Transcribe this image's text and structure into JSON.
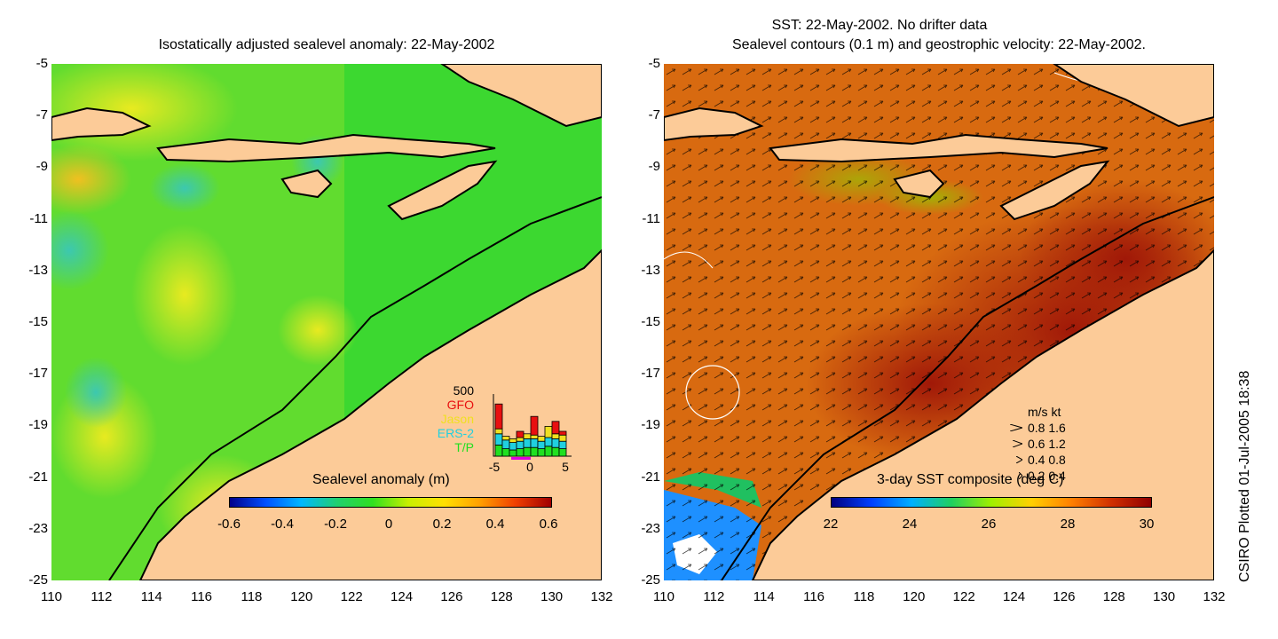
{
  "left_panel": {
    "title": "Isostatically adjusted sealevel anomaly: 22-May-2002",
    "colorbar_label": "Sealevel anomaly (m)",
    "colorbar_ticks": [
      "-0.6",
      "-0.4",
      "-0.2",
      "0",
      "0.2",
      "0.4",
      "0.6"
    ],
    "inset": {
      "max_label": "500",
      "missions": [
        {
          "name": "GFO",
          "color": "#e81010"
        },
        {
          "name": "Jason",
          "color": "#f0e020"
        },
        {
          "name": "ERS-2",
          "color": "#20d0e0"
        },
        {
          "name": "T/P",
          "color": "#20e020"
        }
      ],
      "x_ticks": [
        "-5",
        "0",
        "5"
      ],
      "bars": [
        {
          "tp": 0.18,
          "ers": 0.18,
          "jason": 0.08,
          "gfo": 0.4
        },
        {
          "tp": 0.12,
          "ers": 0.14,
          "jason": 0.06,
          "gfo": 0.0
        },
        {
          "tp": 0.1,
          "ers": 0.12,
          "jason": 0.06,
          "gfo": 0.0
        },
        {
          "tp": 0.12,
          "ers": 0.12,
          "jason": 0.06,
          "gfo": 0.1
        },
        {
          "tp": 0.14,
          "ers": 0.14,
          "jason": 0.08,
          "gfo": 0.0
        },
        {
          "tp": 0.14,
          "ers": 0.14,
          "jason": 0.06,
          "gfo": 0.3
        },
        {
          "tp": 0.12,
          "ers": 0.12,
          "jason": 0.08,
          "gfo": 0.0
        },
        {
          "tp": 0.16,
          "ers": 0.14,
          "jason": 0.18,
          "gfo": 0.0
        },
        {
          "tp": 0.14,
          "ers": 0.14,
          "jason": 0.08,
          "gfo": 0.2
        },
        {
          "tp": 0.12,
          "ers": 0.12,
          "jason": 0.1,
          "gfo": 0.06
        }
      ]
    }
  },
  "right_panel": {
    "title_line1": "SST: 22-May-2002. No drifter data",
    "title_line2": "Sealevel contours (0.1 m) and geostrophic velocity: 22-May-2002.",
    "colorbar_label": "3-day SST composite (deg C)",
    "colorbar_ticks": [
      "22",
      "24",
      "26",
      "28",
      "30"
    ],
    "velocity_legend": {
      "header": "m/s  kt",
      "rows": [
        "0.8  1.6",
        "0.6  1.2",
        "0.4  0.8",
        "0.2  0.4"
      ]
    }
  },
  "axes": {
    "y_ticks": [
      "-5",
      "-7",
      "-9",
      "-11",
      "-13",
      "-15",
      "-17",
      "-19",
      "-21",
      "-23",
      "-25"
    ],
    "x_ticks": [
      "110",
      "112",
      "114",
      "116",
      "118",
      "120",
      "122",
      "124",
      "126",
      "128",
      "130",
      "132"
    ],
    "lon_range": [
      110,
      132
    ],
    "lat_range": [
      -25,
      -5
    ]
  },
  "colors": {
    "land": "#fccb98",
    "sla_scale": [
      "#00008b",
      "#0040ff",
      "#00c0ff",
      "#20d060",
      "#20e020",
      "#d0f000",
      "#ffe000",
      "#ff8000",
      "#c00000",
      "#800000"
    ],
    "sst_scale": [
      "#000080",
      "#0040ff",
      "#00c8ff",
      "#20d040",
      "#c0f000",
      "#ffc000",
      "#e06000",
      "#a02000",
      "#800000"
    ]
  },
  "credit": "CSIRO Plotted 01-Jul-2005 18:38"
}
